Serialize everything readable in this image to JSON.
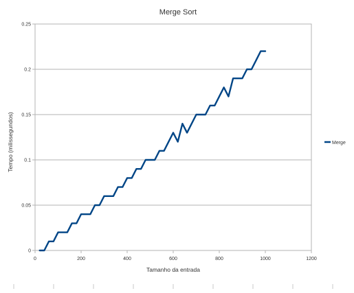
{
  "chart_data": {
    "type": "line",
    "title": "Merge Sort",
    "xlabel": "Tamanho da entrada",
    "ylabel": "Tempo (milissegundos)",
    "xlim": [
      0,
      1200
    ],
    "ylim": [
      0,
      0.25
    ],
    "x_ticks": [
      0,
      200,
      400,
      600,
      800,
      1000,
      1200
    ],
    "y_ticks": [
      0,
      0.05,
      0.1,
      0.15,
      0.2,
      0.25
    ],
    "x_tick_labels": [
      "0",
      "200",
      "400",
      "600",
      "800",
      "1000",
      "1200"
    ],
    "y_tick_labels": [
      "0",
      "0.05",
      "0.1",
      "0.15",
      "0.2",
      "0.25"
    ],
    "grid": "horizontal",
    "legend_position": "right",
    "colors": {
      "series": "#004586",
      "grid": "#b3b3b3",
      "axis": "#b3b3b3"
    },
    "series": [
      {
        "name": "Merge",
        "x": [
          20,
          40,
          60,
          80,
          100,
          120,
          140,
          160,
          180,
          200,
          220,
          240,
          260,
          280,
          300,
          320,
          340,
          360,
          380,
          400,
          420,
          440,
          460,
          480,
          500,
          520,
          540,
          560,
          580,
          600,
          620,
          640,
          660,
          680,
          700,
          720,
          740,
          760,
          780,
          800,
          820,
          840,
          860,
          880,
          900,
          920,
          940,
          960,
          980,
          1000
        ],
        "values": [
          0,
          0,
          0.01,
          0.01,
          0.02,
          0.02,
          0.02,
          0.03,
          0.03,
          0.04,
          0.04,
          0.04,
          0.05,
          0.05,
          0.06,
          0.06,
          0.06,
          0.07,
          0.07,
          0.08,
          0.08,
          0.09,
          0.09,
          0.1,
          0.1,
          0.1,
          0.11,
          0.11,
          0.12,
          0.13,
          0.12,
          0.14,
          0.13,
          0.14,
          0.15,
          0.15,
          0.15,
          0.16,
          0.16,
          0.17,
          0.18,
          0.17,
          0.19,
          0.19,
          0.19,
          0.2,
          0.2,
          0.21,
          0.22,
          0.22
        ]
      }
    ]
  }
}
